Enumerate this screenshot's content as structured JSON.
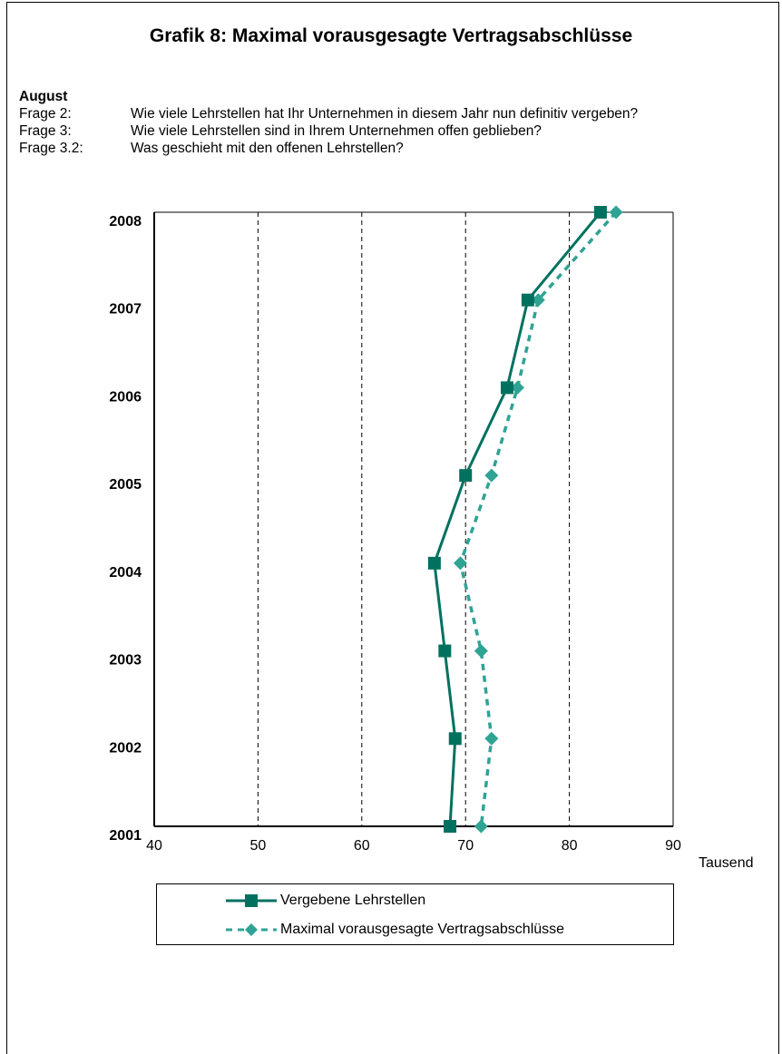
{
  "title": "Grafik 8: Maximal vorausgesagte Vertragsabschlüsse",
  "intro": {
    "heading": "August",
    "questions": [
      {
        "label": "Frage 2:",
        "text": "Wie viele Lehrstellen hat Ihr Unternehmen in diesem Jahr nun definitiv vergeben?"
      },
      {
        "label": "Frage 3:",
        "text": "Wie viele Lehrstellen sind in Ihrem Unternehmen offen geblieben?"
      },
      {
        "label": "Frage 3.2:",
        "text": "Was geschieht mit den offenen Lehrstellen?"
      }
    ]
  },
  "unit_label": "Tausend",
  "colors": {
    "series1": "#00715F",
    "series2": "#2FA394"
  },
  "chart_data": {
    "type": "line",
    "orientation": "horizontal",
    "categories": [
      "2008",
      "2007",
      "2006",
      "2005",
      "2004",
      "2003",
      "2002",
      "2001"
    ],
    "xlim": [
      40,
      90
    ],
    "xticks": [
      "40",
      "50",
      "60",
      "70",
      "80",
      "90"
    ],
    "grid": "vertical dashed",
    "legend_position": "bottom",
    "series": [
      {
        "name": "Vergebene Lehrstellen",
        "style": "solid",
        "marker": "square",
        "values": [
          83.0,
          76.0,
          74.0,
          70.0,
          67.0,
          68.0,
          69.0,
          68.5
        ]
      },
      {
        "name": "Maximal vorausgesagte Vertragsabschlüsse",
        "style": "dashed",
        "marker": "diamond",
        "values": [
          84.5,
          77.0,
          75.0,
          72.5,
          69.5,
          71.5,
          72.5,
          71.5
        ]
      }
    ]
  }
}
